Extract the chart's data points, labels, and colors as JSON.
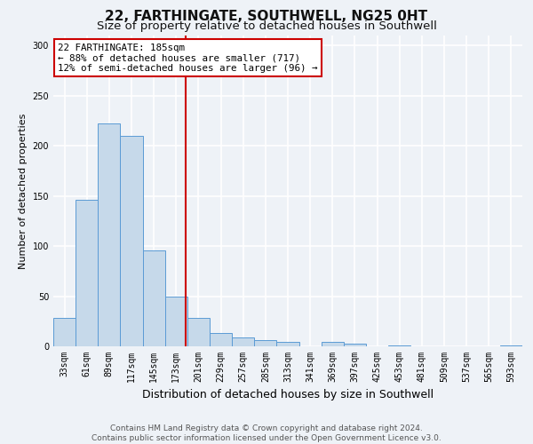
{
  "title": "22, FARTHINGATE, SOUTHWELL, NG25 0HT",
  "subtitle": "Size of property relative to detached houses in Southwell",
  "xlabel": "Distribution of detached houses by size in Southwell",
  "ylabel": "Number of detached properties",
  "bin_labels": [
    "33sqm",
    "61sqm",
    "89sqm",
    "117sqm",
    "145sqm",
    "173sqm",
    "201sqm",
    "229sqm",
    "257sqm",
    "285sqm",
    "313sqm",
    "341sqm",
    "369sqm",
    "397sqm",
    "425sqm",
    "453sqm",
    "481sqm",
    "509sqm",
    "537sqm",
    "565sqm",
    "593sqm"
  ],
  "bar_values": [
    28,
    146,
    222,
    210,
    96,
    50,
    28,
    13,
    9,
    6,
    4,
    0,
    4,
    3,
    0,
    1,
    0,
    0,
    0,
    0,
    1
  ],
  "bar_color": "#c6d9ea",
  "bar_edge_color": "#5b9bd5",
  "ylim": [
    0,
    310
  ],
  "yticks": [
    0,
    50,
    100,
    150,
    200,
    250,
    300
  ],
  "marker_label": "22 FARTHINGATE: 185sqm",
  "annotation_line1": "← 88% of detached houses are smaller (717)",
  "annotation_line2": "12% of semi-detached houses are larger (96) →",
  "vline_color": "#cc0000",
  "annotation_box_color": "#cc0000",
  "footer_line1": "Contains HM Land Registry data © Crown copyright and database right 2024.",
  "footer_line2": "Contains public sector information licensed under the Open Government Licence v3.0.",
  "background_color": "#eef2f7",
  "plot_bg_color": "#eef2f7",
  "grid_color": "#ffffff",
  "title_fontsize": 11,
  "subtitle_fontsize": 9.5,
  "xlabel_fontsize": 9,
  "ylabel_fontsize": 8,
  "tick_fontsize": 7,
  "annotation_fontsize": 7.8,
  "footer_fontsize": 6.5
}
